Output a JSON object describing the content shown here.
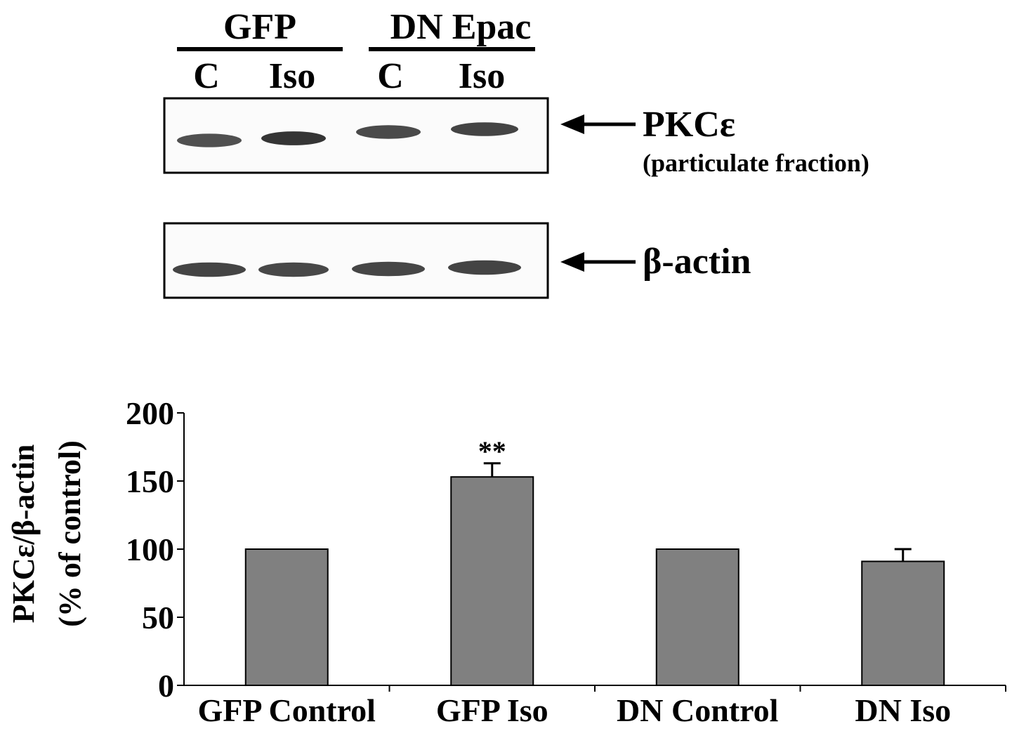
{
  "blot": {
    "groups": [
      {
        "label": "GFP",
        "lanes": [
          "C",
          "Iso"
        ]
      },
      {
        "label": "DN Epac",
        "lanes": [
          "C",
          "Iso"
        ]
      }
    ],
    "panels": [
      {
        "protein": "PKCε",
        "note": "(particulate fraction)",
        "band_intensity": [
          0.82,
          0.95,
          0.85,
          0.88
        ]
      },
      {
        "protein": "β-actin",
        "note": "",
        "band_intensity": [
          0.88,
          0.86,
          0.87,
          0.88
        ]
      }
    ]
  },
  "chart_data": {
    "type": "bar",
    "categories": [
      "GFP Control",
      "GFP Iso",
      "DN Control",
      "DN Iso"
    ],
    "values": [
      100,
      153,
      100,
      91
    ],
    "errors": [
      0,
      10,
      0,
      9
    ],
    "annotations": [
      "",
      "**",
      "",
      ""
    ],
    "title": "",
    "xlabel": "",
    "ylabel": [
      "PKCε/β-actin",
      "(% of control)"
    ],
    "ylim": [
      0,
      200
    ],
    "yticks": [
      0,
      50,
      100,
      150,
      200
    ],
    "grid": false,
    "colors": {
      "bar": "#808080",
      "bar_edge": "#000000",
      "band": "#2a2a2a"
    }
  }
}
